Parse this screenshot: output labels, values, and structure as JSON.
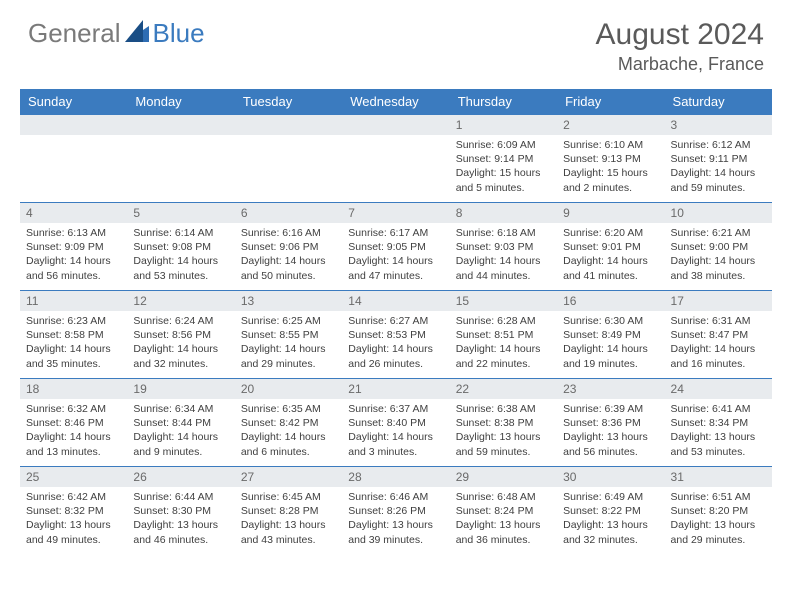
{
  "logo": {
    "general": "General",
    "blue": "Blue",
    "color_gray": "#7a7a7a",
    "color_blue": "#3b7bbf"
  },
  "title": "August 2024",
  "location": "Marbache, France",
  "colors": {
    "header_bg": "#3b7bbf",
    "header_text": "#ffffff",
    "daynum_bg": "#e8ebee",
    "daynum_text": "#6a6a6a",
    "body_text": "#404040",
    "row_border": "#3b7bbf"
  },
  "day_headers": [
    "Sunday",
    "Monday",
    "Tuesday",
    "Wednesday",
    "Thursday",
    "Friday",
    "Saturday"
  ],
  "weeks": [
    [
      null,
      null,
      null,
      null,
      {
        "n": "1",
        "sr": "Sunrise: 6:09 AM",
        "ss": "Sunset: 9:14 PM",
        "dl": "Daylight: 15 hours and 5 minutes."
      },
      {
        "n": "2",
        "sr": "Sunrise: 6:10 AM",
        "ss": "Sunset: 9:13 PM",
        "dl": "Daylight: 15 hours and 2 minutes."
      },
      {
        "n": "3",
        "sr": "Sunrise: 6:12 AM",
        "ss": "Sunset: 9:11 PM",
        "dl": "Daylight: 14 hours and 59 minutes."
      }
    ],
    [
      {
        "n": "4",
        "sr": "Sunrise: 6:13 AM",
        "ss": "Sunset: 9:09 PM",
        "dl": "Daylight: 14 hours and 56 minutes."
      },
      {
        "n": "5",
        "sr": "Sunrise: 6:14 AM",
        "ss": "Sunset: 9:08 PM",
        "dl": "Daylight: 14 hours and 53 minutes."
      },
      {
        "n": "6",
        "sr": "Sunrise: 6:16 AM",
        "ss": "Sunset: 9:06 PM",
        "dl": "Daylight: 14 hours and 50 minutes."
      },
      {
        "n": "7",
        "sr": "Sunrise: 6:17 AM",
        "ss": "Sunset: 9:05 PM",
        "dl": "Daylight: 14 hours and 47 minutes."
      },
      {
        "n": "8",
        "sr": "Sunrise: 6:18 AM",
        "ss": "Sunset: 9:03 PM",
        "dl": "Daylight: 14 hours and 44 minutes."
      },
      {
        "n": "9",
        "sr": "Sunrise: 6:20 AM",
        "ss": "Sunset: 9:01 PM",
        "dl": "Daylight: 14 hours and 41 minutes."
      },
      {
        "n": "10",
        "sr": "Sunrise: 6:21 AM",
        "ss": "Sunset: 9:00 PM",
        "dl": "Daylight: 14 hours and 38 minutes."
      }
    ],
    [
      {
        "n": "11",
        "sr": "Sunrise: 6:23 AM",
        "ss": "Sunset: 8:58 PM",
        "dl": "Daylight: 14 hours and 35 minutes."
      },
      {
        "n": "12",
        "sr": "Sunrise: 6:24 AM",
        "ss": "Sunset: 8:56 PM",
        "dl": "Daylight: 14 hours and 32 minutes."
      },
      {
        "n": "13",
        "sr": "Sunrise: 6:25 AM",
        "ss": "Sunset: 8:55 PM",
        "dl": "Daylight: 14 hours and 29 minutes."
      },
      {
        "n": "14",
        "sr": "Sunrise: 6:27 AM",
        "ss": "Sunset: 8:53 PM",
        "dl": "Daylight: 14 hours and 26 minutes."
      },
      {
        "n": "15",
        "sr": "Sunrise: 6:28 AM",
        "ss": "Sunset: 8:51 PM",
        "dl": "Daylight: 14 hours and 22 minutes."
      },
      {
        "n": "16",
        "sr": "Sunrise: 6:30 AM",
        "ss": "Sunset: 8:49 PM",
        "dl": "Daylight: 14 hours and 19 minutes."
      },
      {
        "n": "17",
        "sr": "Sunrise: 6:31 AM",
        "ss": "Sunset: 8:47 PM",
        "dl": "Daylight: 14 hours and 16 minutes."
      }
    ],
    [
      {
        "n": "18",
        "sr": "Sunrise: 6:32 AM",
        "ss": "Sunset: 8:46 PM",
        "dl": "Daylight: 14 hours and 13 minutes."
      },
      {
        "n": "19",
        "sr": "Sunrise: 6:34 AM",
        "ss": "Sunset: 8:44 PM",
        "dl": "Daylight: 14 hours and 9 minutes."
      },
      {
        "n": "20",
        "sr": "Sunrise: 6:35 AM",
        "ss": "Sunset: 8:42 PM",
        "dl": "Daylight: 14 hours and 6 minutes."
      },
      {
        "n": "21",
        "sr": "Sunrise: 6:37 AM",
        "ss": "Sunset: 8:40 PM",
        "dl": "Daylight: 14 hours and 3 minutes."
      },
      {
        "n": "22",
        "sr": "Sunrise: 6:38 AM",
        "ss": "Sunset: 8:38 PM",
        "dl": "Daylight: 13 hours and 59 minutes."
      },
      {
        "n": "23",
        "sr": "Sunrise: 6:39 AM",
        "ss": "Sunset: 8:36 PM",
        "dl": "Daylight: 13 hours and 56 minutes."
      },
      {
        "n": "24",
        "sr": "Sunrise: 6:41 AM",
        "ss": "Sunset: 8:34 PM",
        "dl": "Daylight: 13 hours and 53 minutes."
      }
    ],
    [
      {
        "n": "25",
        "sr": "Sunrise: 6:42 AM",
        "ss": "Sunset: 8:32 PM",
        "dl": "Daylight: 13 hours and 49 minutes."
      },
      {
        "n": "26",
        "sr": "Sunrise: 6:44 AM",
        "ss": "Sunset: 8:30 PM",
        "dl": "Daylight: 13 hours and 46 minutes."
      },
      {
        "n": "27",
        "sr": "Sunrise: 6:45 AM",
        "ss": "Sunset: 8:28 PM",
        "dl": "Daylight: 13 hours and 43 minutes."
      },
      {
        "n": "28",
        "sr": "Sunrise: 6:46 AM",
        "ss": "Sunset: 8:26 PM",
        "dl": "Daylight: 13 hours and 39 minutes."
      },
      {
        "n": "29",
        "sr": "Sunrise: 6:48 AM",
        "ss": "Sunset: 8:24 PM",
        "dl": "Daylight: 13 hours and 36 minutes."
      },
      {
        "n": "30",
        "sr": "Sunrise: 6:49 AM",
        "ss": "Sunset: 8:22 PM",
        "dl": "Daylight: 13 hours and 32 minutes."
      },
      {
        "n": "31",
        "sr": "Sunrise: 6:51 AM",
        "ss": "Sunset: 8:20 PM",
        "dl": "Daylight: 13 hours and 29 minutes."
      }
    ]
  ]
}
